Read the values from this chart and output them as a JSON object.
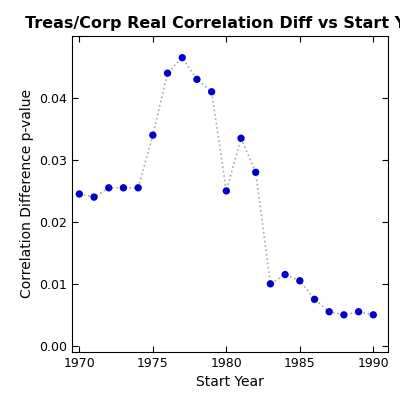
{
  "title": "Treas/Corp Real Correlation Diff vs Start Year",
  "xlabel": "Start Year",
  "ylabel": "Correlation Difference p-value",
  "x": [
    1970,
    1971,
    1972,
    1973,
    1974,
    1975,
    1976,
    1977,
    1978,
    1979,
    1980,
    1981,
    1982,
    1983,
    1984,
    1985,
    1986,
    1987,
    1988,
    1989,
    1990
  ],
  "y": [
    0.0245,
    0.024,
    0.0255,
    0.0255,
    0.0255,
    0.034,
    0.044,
    0.0465,
    0.043,
    0.041,
    0.025,
    0.0335,
    0.028,
    0.01,
    0.0115,
    0.0105,
    0.0075,
    0.0055,
    0.005,
    0.0055,
    0.005
  ],
  "dot_color": "#0000CC",
  "line_color": "#aaaaaa",
  "dot_size": 28,
  "xlim": [
    1969.5,
    1991
  ],
  "ylim": [
    -0.001,
    0.05
  ],
  "xticks": [
    1970,
    1975,
    1980,
    1985,
    1990
  ],
  "yticks": [
    0.0,
    0.01,
    0.02,
    0.03,
    0.04
  ],
  "background_color": "#ffffff",
  "title_fontsize": 11.5,
  "label_fontsize": 10,
  "tick_fontsize": 9
}
